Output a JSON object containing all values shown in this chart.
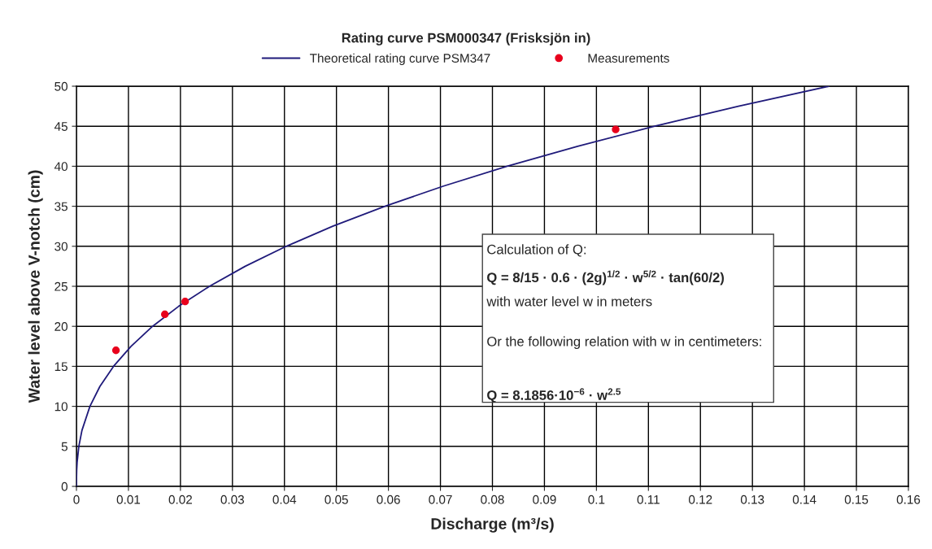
{
  "chart_data": {
    "type": "line",
    "title": "Rating curve PSM000347 (Frisksjön in)",
    "xlabel": "Discharge (m³/s)",
    "ylabel": "Water level above V-notch (cm)",
    "xlim": [
      0,
      0.16
    ],
    "xticks": [
      0,
      0.01,
      0.02,
      0.03,
      0.04,
      0.05,
      0.06,
      0.07,
      0.08,
      0.09,
      {
        "value": 0.1,
        "label": "0.1"
      },
      0.11,
      0.12,
      0.13,
      0.14,
      0.15,
      0.16
    ],
    "ylim": [
      0,
      50
    ],
    "yticks": [
      0,
      5,
      10,
      15,
      20,
      25,
      30,
      35,
      40,
      45,
      50
    ],
    "grid": true,
    "legend": "top",
    "series": [
      {
        "name": "Theoretical rating curve PSM347",
        "color": "#1f1a7a",
        "marker": "none",
        "x": [
          0,
          1e-05,
          4.63e-05,
          0.000128,
          0.000458,
          0.00106,
          0.00259,
          0.00452,
          0.00713,
          0.01049,
          0.01464,
          0.01966,
          0.02558,
          0.03246,
          0.04035,
          0.04929,
          0.05932,
          0.07049,
          0.08283,
          0.09639,
          0.1112,
          0.1273,
          0.1447
        ],
        "values": [
          0,
          1,
          2,
          3,
          5,
          7,
          10,
          12.5,
          15,
          17.5,
          20,
          22.5,
          25,
          27.5,
          30,
          32.5,
          35,
          37.5,
          40,
          42.5,
          45,
          47.5,
          50
        ]
      },
      {
        "name": "Measurements",
        "type": "scatter",
        "color": "#e8001c",
        "marker": "circle",
        "x": [
          0.0076,
          0.017,
          0.0209,
          0.1037
        ],
        "values": [
          17.0,
          21.5,
          23.1,
          44.6
        ]
      }
    ],
    "annotations": [
      "Calculation of Q:",
      "Q = 8/15 · 0.6 · (2g)$^{1/2}$ · w$^{5/2}$ · tan(60/2)",
      "with water level w in meters",
      "Or the following relation with w in centimeters:",
      "Q = 8.1856·10$^{−6}$ · w$^{2.5}$"
    ]
  }
}
